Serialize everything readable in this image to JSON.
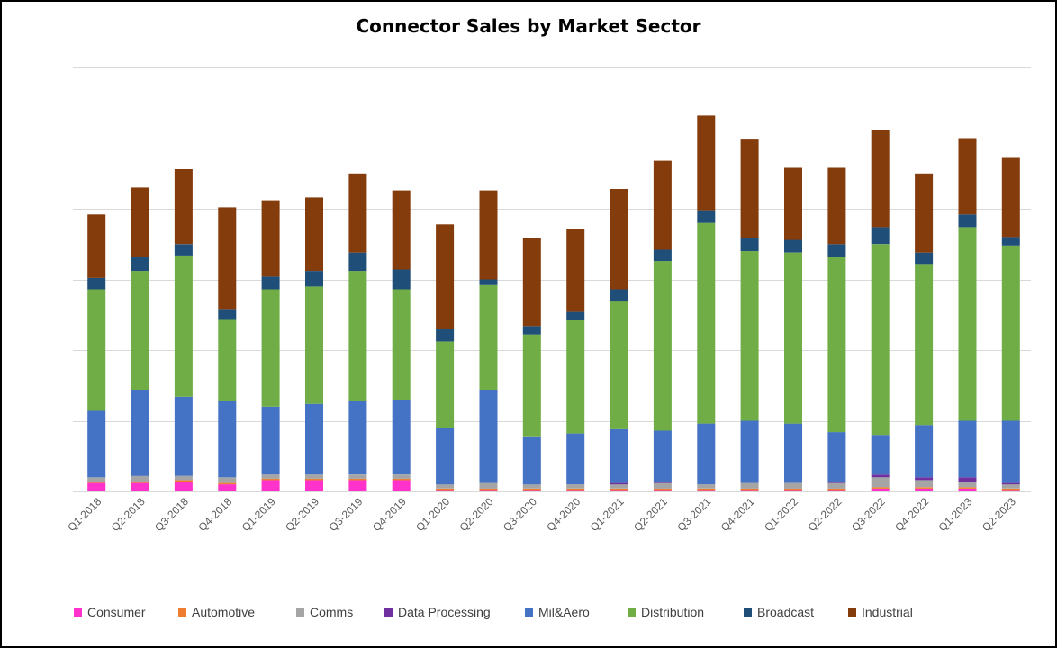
{
  "chart_data": {
    "type": "bar",
    "stacked": true,
    "title": "Connector Sales by Market Sector",
    "xlabel": "",
    "ylabel": "",
    "y_tick_labels_shown": false,
    "grid": true,
    "ylim": [
      0,
      3.0
    ],
    "legend_position": "bottom",
    "categories": [
      "Q1-2018",
      "Q2-2018",
      "Q3-2018",
      "Q4-2018",
      "Q1-2019",
      "Q2-2019",
      "Q3-2019",
      "Q4-2019",
      "Q1-2020",
      "Q2-2020",
      "Q3-2020",
      "Q4-2020",
      "Q1-2021",
      "Q2-2021",
      "Q3-2021",
      "Q4-2021",
      "Q1-2022",
      "Q2-2022",
      "Q3-2022",
      "Q4-2022",
      "Q1-2023",
      "Q2-2023"
    ],
    "series": [
      {
        "name": "Consumer",
        "color": "#ff33cc",
        "values": [
          0.06,
          0.06,
          0.07,
          0.05,
          0.08,
          0.08,
          0.08,
          0.08,
          0.01,
          0.01,
          0.01,
          0.01,
          0.01,
          0.01,
          0.01,
          0.01,
          0.01,
          0.01,
          0.02,
          0.02,
          0.02,
          0.01
        ]
      },
      {
        "name": "Automotive",
        "color": "#ed7d31",
        "values": [
          0.01,
          0.01,
          0.01,
          0.01,
          0.01,
          0.01,
          0.01,
          0.01,
          0.01,
          0.01,
          0.01,
          0.01,
          0.01,
          0.01,
          0.01,
          0.01,
          0.01,
          0.01,
          0.01,
          0.01,
          0.01,
          0.01
        ]
      },
      {
        "name": "Comms",
        "color": "#a5a5a5",
        "values": [
          0.03,
          0.04,
          0.03,
          0.04,
          0.03,
          0.03,
          0.03,
          0.03,
          0.03,
          0.04,
          0.03,
          0.03,
          0.03,
          0.04,
          0.03,
          0.04,
          0.04,
          0.04,
          0.07,
          0.05,
          0.04,
          0.03
        ]
      },
      {
        "name": "Data Processing",
        "color": "#7030a0",
        "values": [
          0.0,
          0.0,
          0.0,
          0.0,
          0.0,
          0.0,
          0.0,
          0.0,
          0.0,
          0.0,
          0.0,
          0.0,
          0.01,
          0.01,
          0.0,
          0.0,
          0.0,
          0.01,
          0.02,
          0.02,
          0.03,
          0.01
        ]
      },
      {
        "name": "Mil&Aero",
        "color": "#4472c4",
        "values": [
          0.47,
          0.61,
          0.56,
          0.54,
          0.48,
          0.5,
          0.52,
          0.53,
          0.4,
          0.66,
          0.34,
          0.36,
          0.38,
          0.36,
          0.43,
          0.44,
          0.42,
          0.35,
          0.28,
          0.37,
          0.4,
          0.44
        ]
      },
      {
        "name": "Distribution",
        "color": "#70ad47",
        "values": [
          0.86,
          0.84,
          1.0,
          0.58,
          0.83,
          0.83,
          0.92,
          0.78,
          0.61,
          0.74,
          0.72,
          0.8,
          0.91,
          1.2,
          1.42,
          1.2,
          1.21,
          1.24,
          1.35,
          1.14,
          1.37,
          1.24
        ]
      },
      {
        "name": "Broadcast",
        "color": "#1f4e79",
        "values": [
          0.08,
          0.1,
          0.08,
          0.07,
          0.09,
          0.11,
          0.13,
          0.14,
          0.09,
          0.04,
          0.06,
          0.06,
          0.08,
          0.08,
          0.09,
          0.09,
          0.09,
          0.09,
          0.12,
          0.08,
          0.09,
          0.06
        ]
      },
      {
        "name": "Industrial",
        "color": "#843c0c",
        "values": [
          0.45,
          0.49,
          0.53,
          0.72,
          0.54,
          0.52,
          0.56,
          0.56,
          0.74,
          0.63,
          0.62,
          0.59,
          0.71,
          0.63,
          0.67,
          0.7,
          0.51,
          0.54,
          0.69,
          0.56,
          0.54,
          0.56
        ]
      }
    ]
  }
}
